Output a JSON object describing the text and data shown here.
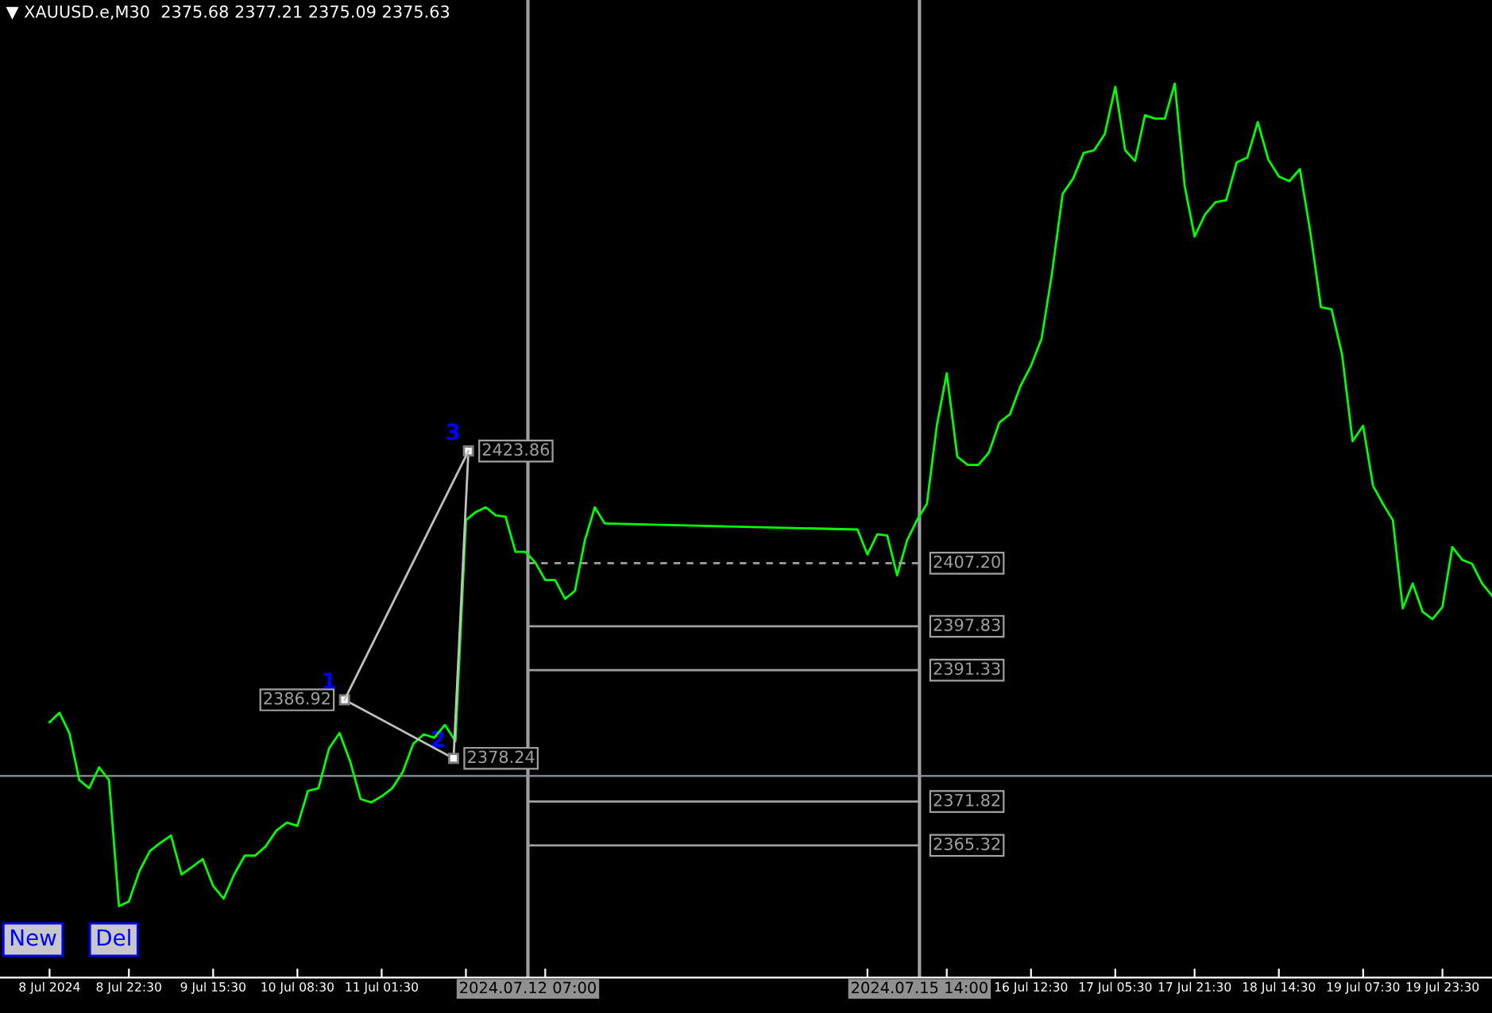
{
  "chart_data": {
    "type": "line",
    "title": "▼ XAUUSD.e,M30  2375.68 2377.21 2375.09 2375.63",
    "x": [
      "2024-07-08T06:30",
      "2024-07-08T08:30",
      "2024-07-08T10:30",
      "2024-07-08T12:30",
      "2024-07-08T14:30",
      "2024-07-08T16:30",
      "2024-07-08T18:30",
      "2024-07-08T20:30",
      "2024-07-08T22:30",
      "2024-07-09T00:38",
      "2024-07-09T02:45",
      "2024-07-09T04:53",
      "2024-07-09T07:00",
      "2024-07-09T09:08",
      "2024-07-09T11:15",
      "2024-07-09T13:23",
      "2024-07-09T15:30",
      "2024-07-09T17:38",
      "2024-07-09T19:45",
      "2024-07-09T21:53",
      "2024-07-10T00:00",
      "2024-07-10T02:08",
      "2024-07-10T04:15",
      "2024-07-10T06:23",
      "2024-07-10T08:30",
      "2024-07-10T10:38",
      "2024-07-10T12:45",
      "2024-07-10T14:53",
      "2024-07-10T17:00",
      "2024-07-10T19:08",
      "2024-07-10T21:15",
      "2024-07-10T23:23",
      "2024-07-11T01:30",
      "2024-07-11T03:38",
      "2024-07-11T05:45",
      "2024-07-11T07:53",
      "2024-07-11T10:00",
      "2024-07-11T12:08",
      "2024-07-11T14:15",
      "2024-07-11T16:23",
      "2024-07-11T18:30",
      "2024-07-11T20:30",
      "2024-07-11T22:30",
      "2024-07-12T00:30",
      "2024-07-12T02:30",
      "2024-07-12T04:30",
      "2024-07-12T06:30",
      "2024-07-12T08:30",
      "2024-07-12T10:30",
      "2024-07-12T12:30",
      "2024-07-12T14:30",
      "2024-07-12T16:30",
      "2024-07-12T18:30",
      "2024-07-12T20:30",
      "2024-07-12T22:30",
      "2024-07-15T01:30",
      "2024-07-15T03:30",
      "2024-07-15T05:30",
      "2024-07-15T07:30",
      "2024-07-15T09:30",
      "2024-07-15T11:30",
      "2024-07-15T13:30",
      "2024-07-15T15:30",
      "2024-07-15T17:30",
      "2024-07-15T19:30",
      "2024-07-15T21:38",
      "2024-07-15T23:45",
      "2024-07-16T01:53",
      "2024-07-16T04:00",
      "2024-07-16T06:08",
      "2024-07-16T08:15",
      "2024-07-16T10:23",
      "2024-07-16T12:30",
      "2024-07-16T14:38",
      "2024-07-16T16:45",
      "2024-07-16T18:53",
      "2024-07-16T21:00",
      "2024-07-16T23:08",
      "2024-07-17T01:15",
      "2024-07-17T03:23",
      "2024-07-17T05:30",
      "2024-07-17T07:30",
      "2024-07-17T09:30",
      "2024-07-17T11:30",
      "2024-07-17T13:30",
      "2024-07-17T15:30",
      "2024-07-17T17:30",
      "2024-07-17T19:30",
      "2024-07-17T21:30",
      "2024-07-17T23:38",
      "2024-07-18T01:45",
      "2024-07-18T03:53",
      "2024-07-18T06:00",
      "2024-07-18T08:08",
      "2024-07-18T10:15",
      "2024-07-18T12:23",
      "2024-07-18T14:30",
      "2024-07-18T16:38",
      "2024-07-18T18:45",
      "2024-07-18T20:53",
      "2024-07-18T23:00",
      "2024-07-19T01:08",
      "2024-07-19T03:15",
      "2024-07-19T05:23",
      "2024-07-19T07:30",
      "2024-07-19T09:30",
      "2024-07-19T11:30",
      "2024-07-19T13:30",
      "2024-07-19T15:30",
      "2024-07-19T17:30",
      "2024-07-19T19:30",
      "2024-07-19T21:30",
      "2024-07-19T23:30",
      "2024-07-20T01:30",
      "2024-07-20T03:30",
      "2024-07-20T05:30",
      "2024-07-20T07:30",
      "2024-07-20T09:30"
    ],
    "series": [
      {
        "color": "#00ff00",
        "values": [
          2383.6,
          2385.0,
          2382.0,
          2375.0,
          2373.8,
          2376.9,
          2375.0,
          2356.3,
          2357.0,
          2361.5,
          2364.5,
          2365.7,
          2366.8,
          2361.0,
          2362.1,
          2363.3,
          2359.3,
          2357.4,
          2361.0,
          2363.8,
          2363.8,
          2365.2,
          2367.5,
          2368.7,
          2368.2,
          2373.4,
          2373.8,
          2379.7,
          2382.0,
          2377.8,
          2372.2,
          2371.7,
          2372.6,
          2373.8,
          2376.2,
          2380.4,
          2381.8,
          2381.3,
          2383.2,
          2380.8,
          2413.6,
          2414.8,
          2415.5,
          2414.3,
          2414.1,
          2408.9,
          2408.9,
          2407.3,
          2404.7,
          2404.7,
          2401.9,
          2403.1,
          2410.6,
          2415.5,
          2413.1,
          2412.2,
          2408.5,
          2411.5,
          2411.3,
          2405.4,
          2410.6,
          2413.6,
          2416.0,
          2427.6,
          2435.4,
          2423.0,
          2421.8,
          2421.8,
          2423.6,
          2428.1,
          2429.3,
          2433.5,
          2436.5,
          2440.5,
          2450.3,
          2462.0,
          2464.3,
          2468.1,
          2468.5,
          2470.9,
          2477.9,
          2468.5,
          2466.9,
          2473.7,
          2473.2,
          2473.2,
          2478.4,
          2463.2,
          2455.7,
          2459.0,
          2460.8,
          2461.1,
          2466.7,
          2467.4,
          2472.7,
          2467.1,
          2464.6,
          2463.9,
          2465.7,
          2456.2,
          2445.2,
          2444.9,
          2438.2,
          2425.3,
          2427.6,
          2418.7,
          2416.0,
          2413.6,
          2400.5,
          2404.2,
          2400.0,
          2398.9,
          2400.7,
          2409.6,
          2407.7,
          2407.1,
          2404.2,
          2402.4
        ]
      },
      {
        "x": [
          "2024-07-10T18:00",
          "2024-07-11T16:00",
          "2024-07-11T19:00"
        ],
        "values": [
          2386.92,
          2378.24,
          2423.86
        ],
        "color": "#c0c0c0",
        "marker": "square",
        "value_labels": [
          "2386.92",
          "2378.24",
          "2423.86"
        ]
      },
      {
        "x": [
          "2024-07-10T18:00",
          "2024-07-11T19:00"
        ],
        "values": [
          2386.92,
          2423.86
        ],
        "color": "#c0c0c0"
      },
      {
        "x": [
          "2024-07-12T07:00",
          "2024-07-15T14:00"
        ],
        "values": [
          2407.2,
          2407.2
        ],
        "color": "#a0a0a0",
        "line_style": "dashed",
        "value_labels": [
          null,
          "2407.20"
        ]
      },
      {
        "x": [
          "2024-07-12T07:00",
          "2024-07-15T14:00"
        ],
        "values": [
          2397.83,
          2397.83
        ],
        "color": "#a0a0a0",
        "line_style": "solid",
        "value_labels": [
          null,
          "2397.83"
        ]
      },
      {
        "x": [
          "2024-07-12T07:00",
          "2024-07-15T14:00"
        ],
        "values": [
          2391.33,
          2391.33
        ],
        "color": "#a0a0a0",
        "line_style": "solid",
        "value_labels": [
          null,
          "2391.33"
        ]
      },
      {
        "x": [
          "2024-07-12T07:00",
          "2024-07-15T14:00"
        ],
        "values": [
          2371.82,
          2371.82
        ],
        "color": "#a0a0a0",
        "line_style": "solid",
        "value_labels": [
          null,
          "2371.82"
        ]
      },
      {
        "x": [
          "2024-07-12T07:00",
          "2024-07-15T14:00"
        ],
        "values": [
          2365.32,
          2365.32
        ],
        "color": "#a0a0a0",
        "line_style": "solid",
        "value_labels": [
          null,
          "2365.32"
        ]
      }
    ],
    "xlim": [
      "2024-07-07T20:30",
      "2024-07-20T09:30"
    ],
    "ylim": [
      2345.7,
      2490.8
    ],
    "xticks": [
      {
        "value": "2024-07-08T06:30",
        "label": "8 Jul 2024"
      },
      {
        "value": "2024-07-08T22:30",
        "label": "8 Jul 22:30"
      },
      {
        "value": "2024-07-09T15:30",
        "label": "9 Jul 15:30"
      },
      {
        "value": "2024-07-10T08:30",
        "label": "10 Jul 08:30"
      },
      {
        "value": "2024-07-11T01:30",
        "label": "11 Jul 01:30"
      },
      {
        "value": "2024-07-11T18:30",
        "label": null
      },
      {
        "value": "2024-07-12T10:30",
        "label": null
      },
      {
        "value": "2024-07-15T03:30",
        "label": null
      },
      {
        "value": "2024-07-15T19:30",
        "label": null
      },
      {
        "value": "2024-07-16T12:30",
        "label": "16 Jul 12:30"
      },
      {
        "value": "2024-07-17T05:30",
        "label": "17 Jul 05:30"
      },
      {
        "value": "2024-07-17T21:30",
        "label": "17 Jul 21:30"
      },
      {
        "value": "2024-07-18T14:30",
        "label": "18 Jul 14:30"
      },
      {
        "value": "2024-07-19T07:30",
        "label": "19 Jul 07:30"
      },
      {
        "value": "2024-07-19T23:30",
        "label": "19 Jul 23:30"
      }
    ],
    "ref_lines": [
      {
        "axis": "x",
        "value": "2024-07-12T07:00",
        "label": "2024.07.12 07:00",
        "color": "#a0a0a0"
      },
      {
        "axis": "x",
        "value": "2024-07-15T14:00",
        "label": "2024.07.15 14:00",
        "color": "#a0a0a0"
      },
      {
        "axis": "y",
        "value": 2375.63,
        "label": null,
        "color": "#8c96a0"
      }
    ],
    "annotations": [
      {
        "text": "1",
        "x": "2024-07-10T18:00",
        "y": 2386.92
      },
      {
        "text": "2",
        "x": "2024-07-11T16:00",
        "y": 2378.24
      },
      {
        "text": "3",
        "x": "2024-07-11T19:00",
        "y": 2423.86
      },
      "New",
      "Del"
    ],
    "tick_labels": "x",
    "grid": false,
    "legend": false
  }
}
